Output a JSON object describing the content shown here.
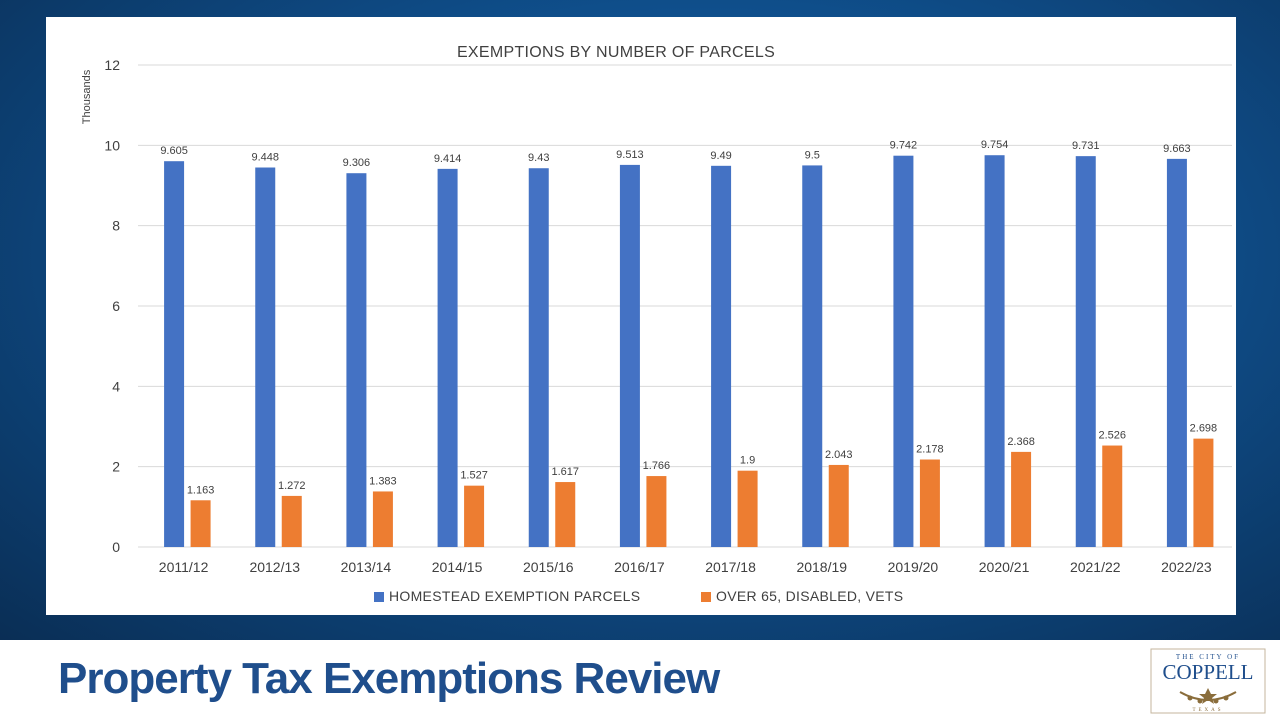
{
  "slide": {
    "title": "Property Tax Exemptions Review"
  },
  "logo": {
    "small_text": "THE CITY OF",
    "name": "COPPELL",
    "sub_text": "TEXAS"
  },
  "colors": {
    "homestead": "#4472C4",
    "over65": "#ED7D31",
    "grid": "#d9d9d9",
    "title_blue": "#1f4e8c"
  },
  "chart_data": {
    "type": "bar",
    "title": "EXEMPTIONS BY NUMBER OF PARCELS",
    "ylabel": "Thousands",
    "xlabel": "",
    "ylim": [
      0,
      12
    ],
    "yticks": [
      0,
      2,
      4,
      6,
      8,
      10,
      12
    ],
    "grid": true,
    "legend_position": "bottom",
    "categories": [
      "2011/12",
      "2012/13",
      "2013/14",
      "2014/15",
      "2015/16",
      "2016/17",
      "2017/18",
      "2018/19",
      "2019/20",
      "2020/21",
      "2021/22",
      "2022/23"
    ],
    "series": [
      {
        "name": "HOMESTEAD EXEMPTION PARCELS",
        "color": "#4472C4",
        "values": [
          9.605,
          9.448,
          9.306,
          9.414,
          9.43,
          9.513,
          9.49,
          9.5,
          9.742,
          9.754,
          9.731,
          9.663
        ]
      },
      {
        "name": "OVER 65, DISABLED, VETS",
        "color": "#ED7D31",
        "values": [
          1.163,
          1.272,
          1.383,
          1.527,
          1.617,
          1.766,
          1.9,
          2.043,
          2.178,
          2.368,
          2.526,
          2.698
        ]
      }
    ]
  }
}
